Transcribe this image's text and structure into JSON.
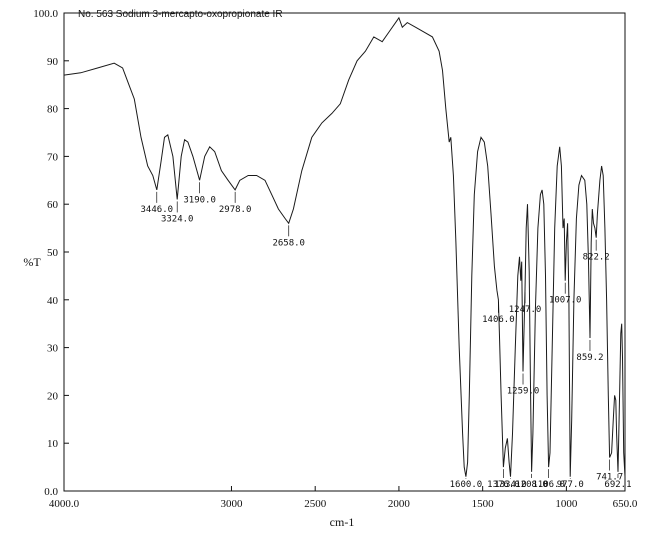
{
  "chart_data": {
    "type": "line",
    "title": "No. 563 Sodium 3-mercapto-oxopropionate IR",
    "xlabel": "cm-1",
    "ylabel": "%T",
    "xlim": [
      4000,
      650
    ],
    "ylim": [
      0,
      100
    ],
    "x_ticks": [
      4000,
      3000,
      2500,
      2000,
      1500,
      1000,
      650
    ],
    "x_tick_labels": [
      "4000.0",
      "3000",
      "2500",
      "2000",
      "1500",
      "1000",
      "650.0"
    ],
    "y_ticks": [
      0,
      10,
      20,
      30,
      40,
      50,
      60,
      70,
      80,
      90,
      100
    ],
    "y_tick_labels": [
      "0.0",
      "10",
      "20",
      "30",
      "40",
      "50",
      "60",
      "70",
      "80",
      "90",
      "100.0"
    ],
    "grid": false,
    "series": [
      {
        "points": [
          [
            4000,
            87
          ],
          [
            3900,
            87.5
          ],
          [
            3800,
            88.5
          ],
          [
            3700,
            89.5
          ],
          [
            3650,
            88.5
          ],
          [
            3580,
            82
          ],
          [
            3540,
            74
          ],
          [
            3500,
            68
          ],
          [
            3470,
            66
          ],
          [
            3446,
            63
          ],
          [
            3420,
            69
          ],
          [
            3400,
            74
          ],
          [
            3380,
            74.5
          ],
          [
            3350,
            70
          ],
          [
            3324,
            61
          ],
          [
            3300,
            70
          ],
          [
            3280,
            73.5
          ],
          [
            3260,
            73
          ],
          [
            3230,
            70
          ],
          [
            3190,
            65
          ],
          [
            3160,
            70
          ],
          [
            3130,
            72
          ],
          [
            3100,
            71
          ],
          [
            3060,
            67
          ],
          [
            3020,
            65
          ],
          [
            2978,
            63
          ],
          [
            2950,
            65
          ],
          [
            2900,
            66
          ],
          [
            2850,
            66
          ],
          [
            2800,
            65
          ],
          [
            2760,
            62
          ],
          [
            2720,
            59
          ],
          [
            2680,
            57
          ],
          [
            2658,
            56
          ],
          [
            2630,
            59
          ],
          [
            2580,
            67
          ],
          [
            2520,
            74
          ],
          [
            2460,
            77
          ],
          [
            2400,
            79
          ],
          [
            2350,
            81
          ],
          [
            2300,
            86
          ],
          [
            2250,
            90
          ],
          [
            2200,
            92
          ],
          [
            2150,
            95
          ],
          [
            2100,
            94
          ],
          [
            2060,
            96
          ],
          [
            2020,
            98
          ],
          [
            2000,
            99
          ],
          [
            1980,
            97
          ],
          [
            1950,
            98
          ],
          [
            1900,
            97
          ],
          [
            1850,
            96
          ],
          [
            1800,
            95
          ],
          [
            1760,
            92
          ],
          [
            1740,
            88
          ],
          [
            1720,
            80
          ],
          [
            1700,
            73
          ],
          [
            1690,
            74
          ],
          [
            1675,
            66
          ],
          [
            1660,
            52
          ],
          [
            1640,
            30
          ],
          [
            1620,
            12
          ],
          [
            1610,
            5
          ],
          [
            1600,
            3
          ],
          [
            1590,
            6
          ],
          [
            1580,
            20
          ],
          [
            1565,
            45
          ],
          [
            1550,
            62
          ],
          [
            1530,
            71
          ],
          [
            1510,
            74
          ],
          [
            1490,
            73
          ],
          [
            1470,
            68
          ],
          [
            1450,
            58
          ],
          [
            1430,
            47
          ],
          [
            1415,
            42
          ],
          [
            1406,
            40
          ],
          [
            1400,
            33
          ],
          [
            1390,
            20
          ],
          [
            1376,
            5
          ],
          [
            1365,
            9
          ],
          [
            1352,
            11
          ],
          [
            1342,
            6
          ],
          [
            1334,
            3
          ],
          [
            1322,
            12
          ],
          [
            1305,
            30
          ],
          [
            1290,
            45
          ],
          [
            1280,
            49
          ],
          [
            1272,
            44
          ],
          [
            1267,
            48
          ],
          [
            1259,
            25
          ],
          [
            1247,
            42
          ],
          [
            1240,
            55
          ],
          [
            1232,
            60
          ],
          [
            1222,
            46
          ],
          [
            1214,
            20
          ],
          [
            1208,
            4
          ],
          [
            1200,
            12
          ],
          [
            1185,
            38
          ],
          [
            1170,
            55
          ],
          [
            1155,
            62
          ],
          [
            1145,
            63
          ],
          [
            1135,
            60
          ],
          [
            1125,
            45
          ],
          [
            1115,
            20
          ],
          [
            1106,
            5
          ],
          [
            1098,
            8
          ],
          [
            1085,
            30
          ],
          [
            1070,
            55
          ],
          [
            1055,
            68
          ],
          [
            1040,
            72
          ],
          [
            1030,
            68
          ],
          [
            1020,
            55
          ],
          [
            1013,
            57
          ],
          [
            1007,
            44
          ],
          [
            1000,
            52
          ],
          [
            993,
            56
          ],
          [
            985,
            40
          ],
          [
            977,
            3
          ],
          [
            968,
            15
          ],
          [
            955,
            40
          ],
          [
            940,
            57
          ],
          [
            925,
            64
          ],
          [
            910,
            66
          ],
          [
            890,
            65
          ],
          [
            878,
            60
          ],
          [
            868,
            48
          ],
          [
            859,
            32
          ],
          [
            852,
            52
          ],
          [
            845,
            59
          ],
          [
            838,
            56
          ],
          [
            830,
            55
          ],
          [
            822,
            53
          ],
          [
            815,
            58
          ],
          [
            800,
            65
          ],
          [
            790,
            68
          ],
          [
            780,
            66
          ],
          [
            770,
            55
          ],
          [
            760,
            40
          ],
          [
            750,
            20
          ],
          [
            741.7,
            7
          ],
          [
            730,
            8
          ],
          [
            720,
            15
          ],
          [
            712,
            20
          ],
          [
            705,
            19
          ],
          [
            700,
            12
          ],
          [
            692,
            4
          ],
          [
            685,
            15
          ],
          [
            675,
            33
          ],
          [
            670,
            35
          ],
          [
            665,
            28
          ],
          [
            658,
            8
          ],
          [
            650,
            3
          ]
        ]
      }
    ],
    "peak_labels": [
      {
        "x": 3446,
        "y": 63,
        "label": "3446.0"
      },
      {
        "x": 3324,
        "y": 61,
        "label": "3324.0"
      },
      {
        "x": 3190,
        "y": 65,
        "label": "3190.0"
      },
      {
        "x": 2978,
        "y": 63,
        "label": "2978.0"
      },
      {
        "x": 2658,
        "y": 56,
        "label": "2658.0"
      },
      {
        "x": 1600,
        "y": 3,
        "label": "1600.0"
      },
      {
        "x": 1406,
        "y": 40,
        "label": "1406.0"
      },
      {
        "x": 1376,
        "y": 5,
        "label": "1376.0"
      },
      {
        "x": 1334,
        "y": 3,
        "label": "1334.0"
      },
      {
        "x": 1259,
        "y": 25,
        "label": "1259.0"
      },
      {
        "x": 1247,
        "y": 42,
        "label": "1247.0"
      },
      {
        "x": 1208,
        "y": 4,
        "label": "1208.0"
      },
      {
        "x": 1106,
        "y": 5,
        "label": "1106.0"
      },
      {
        "x": 1007,
        "y": 44,
        "label": "1007.0"
      },
      {
        "x": 977,
        "y": 3,
        "label": "977.0"
      },
      {
        "x": 859.2,
        "y": 32,
        "label": "859.2"
      },
      {
        "x": 822.2,
        "y": 53,
        "label": "822.2"
      },
      {
        "x": 741.7,
        "y": 7,
        "label": "741.7"
      },
      {
        "x": 692,
        "y": 4,
        "label": "692.1"
      }
    ],
    "line_color": "#1a1a1a"
  }
}
